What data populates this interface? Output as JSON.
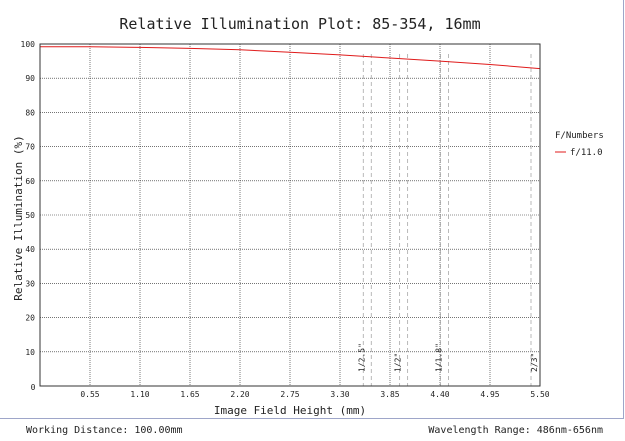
{
  "chart_data": {
    "type": "line",
    "title": "Relative Illumination Plot: 85-354, 16mm",
    "xlabel": "Image Field Height (mm)",
    "ylabel": "Relative Illumination (%)",
    "xlim": [
      0,
      5.5
    ],
    "ylim": [
      0,
      100
    ],
    "x_ticks": [
      "0.55",
      "1.10",
      "1.65",
      "2.20",
      "2.75",
      "3.30",
      "3.85",
      "4.40",
      "4.95",
      "5.50"
    ],
    "y_ticks": [
      "10",
      "20",
      "30",
      "40",
      "50",
      "60",
      "70",
      "80",
      "90",
      "100"
    ],
    "origin_label": "0",
    "grid": true,
    "legend_title": "F/Numbers",
    "legend_position": "right",
    "series": [
      {
        "name": "f/11.0",
        "color": "#e01b1b",
        "x": [
          0,
          0.55,
          1.1,
          1.65,
          2.2,
          2.75,
          3.3,
          3.85,
          4.4,
          4.95,
          5.5
        ],
        "y": [
          99.2,
          99.2,
          99.0,
          98.7,
          98.3,
          97.6,
          96.8,
          95.9,
          95.0,
          94.0,
          92.8
        ]
      }
    ],
    "sensor_markers": [
      {
        "label": "1/2.5\"",
        "x": 3.6
      },
      {
        "label": "1/2\"",
        "x": 4.0
      },
      {
        "label": "1/1.8\"",
        "x": 4.45
      },
      {
        "label": "2/3\"",
        "x": 5.5
      }
    ]
  },
  "footer": {
    "working_distance": "Working Distance: 100.00mm",
    "wavelength_range": "Wavelength Range: 486nm-656nm"
  }
}
